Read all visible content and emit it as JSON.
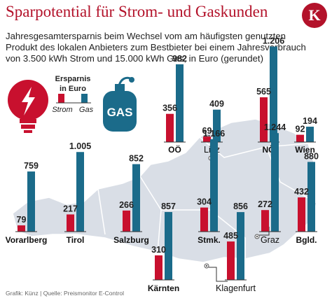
{
  "header": {
    "title": "Sparpotential für Strom- und Gaskunden",
    "logo_letter": "K",
    "subtitle": "Jahresgesamtersparnis beim Wechsel vom am häufigsten genutzten Produkt des lokalen Anbieters zum Bestbieter bei einem Jahresverbrauch von 3.500 kWh Strom und 15.000 kWh Gas, in Euro (gerundet)"
  },
  "legend": {
    "title_line1": "Ersparnis",
    "title_line2": "in Euro",
    "strom": "Strom",
    "gas": "Gas",
    "gas_icon_text": "GAS"
  },
  "colors": {
    "strom": "#c8102e",
    "gas": "#1b6b8a",
    "map": "#d9dee6",
    "map_outline": "#ffffff"
  },
  "icons": [
    "lightning-bulb-icon",
    "gas-cylinder-icon",
    "city-marker-icon"
  ],
  "cities": {
    "linz": "Linz",
    "graz": "Graz",
    "klagenfurt": "Klagenfurt"
  },
  "footer": "Grafik: Künz | Quelle: Preismonitor E-Control",
  "chart_data": {
    "type": "bar",
    "title": "Sparpotential für Strom- und Gaskunden",
    "unit": "Euro",
    "categories": [
      "OÖ",
      "Linz",
      "NÖ",
      "Wien",
      "Vorarlberg",
      "Tirol",
      "Salzburg",
      "Stmk.",
      "Graz",
      "Bgld.",
      "Kärnten",
      "Klagenfurt"
    ],
    "series": [
      {
        "name": "Strom",
        "values": [
          356,
          69,
          565,
          92,
          79,
          217,
          266,
          304,
          272,
          432,
          310,
          485
        ]
      },
      {
        "name": "Gas",
        "values": [
          982,
          409,
          1206,
          194,
          759,
          1005,
          852,
          1166,
          1244,
          880,
          857,
          856
        ]
      }
    ],
    "value_labels": {
      "strom": [
        "356",
        "69",
        "565",
        "92",
        "79",
        "217",
        "266",
        "304",
        "272",
        "432",
        "310",
        "485"
      ],
      "gas": [
        "982",
        "409",
        "1.206",
        "194",
        "759",
        "1.005",
        "852",
        "1.166",
        "1.244",
        "880",
        "857",
        "856"
      ]
    },
    "grid": false
  }
}
